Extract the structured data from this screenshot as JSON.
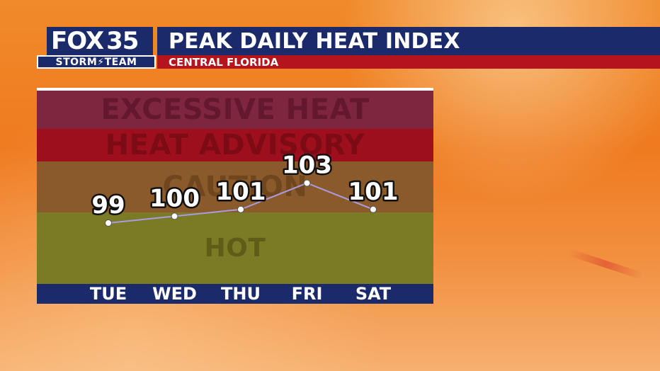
{
  "header": {
    "logo_fox": "FOX",
    "logo_number": "35",
    "logo_team": "STORM⚡TEAM",
    "title": "PEAK DAILY HEAT INDEX",
    "subtitle": "CENTRAL FLORIDA"
  },
  "colors": {
    "header_navy": "#1b2a6b",
    "subtitle_red": "#b5141c",
    "excessive_heat": "#7e2540",
    "heat_advisory": "#9d0f1d",
    "caution": "#8a5a2a",
    "hot": "#7b7a25",
    "line": "#a99be0"
  },
  "chart_data": {
    "type": "line",
    "title": "PEAK DAILY HEAT INDEX",
    "subtitle": "CENTRAL FLORIDA",
    "categories": [
      "TUE",
      "WED",
      "THU",
      "FRI",
      "SAT"
    ],
    "values": [
      99,
      100,
      101,
      103,
      101
    ],
    "ylim": [
      90,
      109
    ],
    "bands": [
      {
        "label": "EXCESSIVE HEAT"
      },
      {
        "label": "HEAT ADVISORY"
      },
      {
        "label": "CAUTION"
      },
      {
        "label": "HOT"
      }
    ],
    "data_labels": true,
    "grid": false,
    "legend": false
  }
}
